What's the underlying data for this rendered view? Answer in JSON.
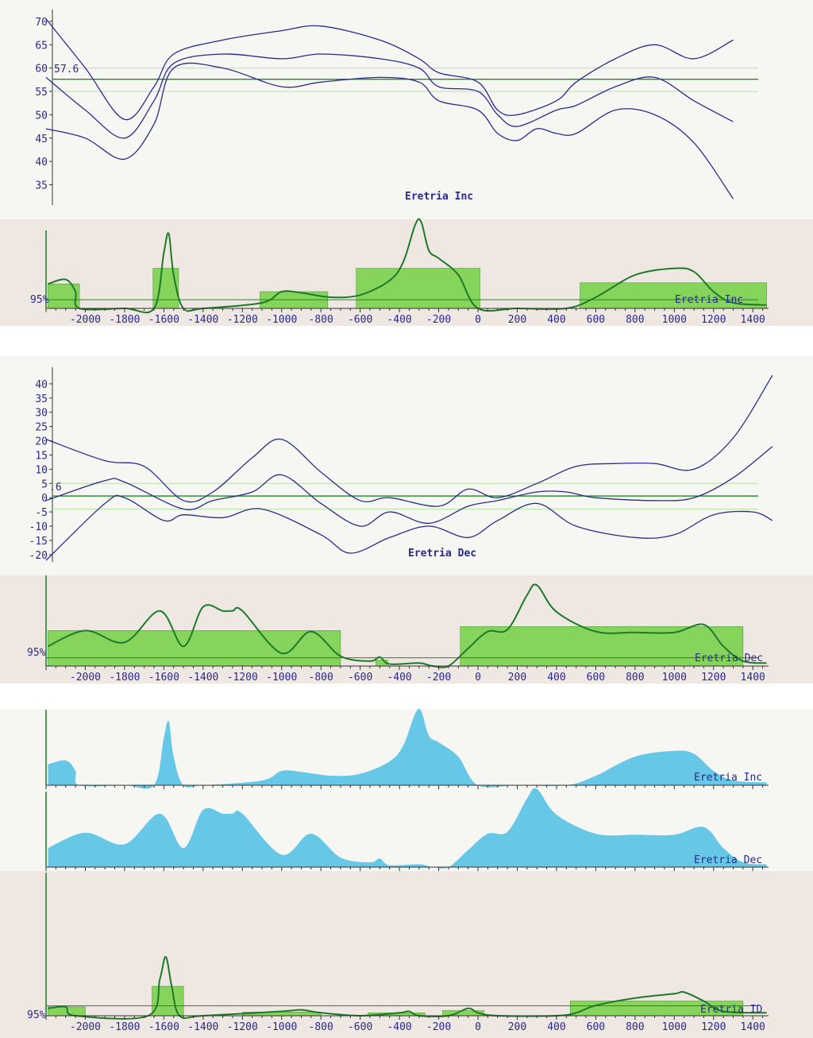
{
  "colors": {
    "panel_light": "#f6f6f3",
    "panel_pink": "#efe7e2",
    "curve_blue": "#2b2b8c",
    "ref_green": "#1f8a1f",
    "band_green": "#b8e0a8",
    "bar_fill": "#86d45c",
    "density_line": "#1c7a28",
    "density_fill": "#66c8e6",
    "text": "#2a2a8a"
  },
  "chart_data": [
    {
      "id": "inc-curves",
      "type": "line",
      "label": "Eretria Inc",
      "ylim": [
        31,
        71
      ],
      "yticks": [
        35,
        40,
        45,
        50,
        55,
        60,
        65,
        70
      ],
      "reference": {
        "value": 57.6,
        "label": "57.6",
        "band": [
          55,
          60
        ]
      },
      "series": [
        {
          "x": [
            -2200,
            -2000,
            -1800,
            -1650,
            -1550,
            -1300,
            -1000,
            -800,
            -500,
            -300,
            -200,
            0,
            100,
            200,
            400,
            500,
            700,
            900,
            1100,
            1300
          ],
          "y": [
            70.5,
            60,
            49,
            56,
            63,
            66,
            68,
            69,
            66,
            62,
            59,
            57,
            51,
            50,
            53,
            57,
            62,
            65,
            62,
            66
          ]
        },
        {
          "x": [
            -2200,
            -2000,
            -1800,
            -1650,
            -1550,
            -1300,
            -1000,
            -800,
            -500,
            -300,
            -200,
            0,
            100,
            200,
            400,
            500,
            700,
            900,
            1100,
            1300
          ],
          "y": [
            58,
            51,
            45,
            53,
            61,
            63,
            62,
            63,
            62,
            60,
            56,
            55,
            50,
            47.5,
            51,
            52,
            56,
            58,
            53,
            48.5
          ]
        },
        {
          "x": [
            -2200,
            -2000,
            -1800,
            -1650,
            -1550,
            -1300,
            -1000,
            -800,
            -500,
            -300,
            -200,
            0,
            100,
            200,
            300,
            400,
            500,
            700,
            900,
            1100,
            1300
          ],
          "y": [
            47,
            45,
            40.5,
            48,
            60,
            60,
            56,
            57,
            58,
            57,
            53,
            51,
            46,
            44.5,
            47,
            46,
            46,
            51,
            50,
            44,
            32
          ]
        }
      ]
    },
    {
      "id": "inc-density",
      "type": "area",
      "label": "Eretria Inc",
      "reference_label": "95%",
      "xticks": [
        -2000,
        -1800,
        -1600,
        -1400,
        -1200,
        -1000,
        -800,
        -600,
        -400,
        -200,
        0,
        200,
        400,
        600,
        800,
        1000,
        1200,
        1400
      ],
      "intervals": [
        {
          "from": -2190,
          "to": -2030,
          "height": 0.22
        },
        {
          "from": -1655,
          "to": -1525,
          "height": 0.36
        },
        {
          "from": -1110,
          "to": -765,
          "height": 0.15
        },
        {
          "from": -620,
          "to": 10,
          "height": 0.36
        },
        {
          "from": 520,
          "to": 1470,
          "height": 0.23
        }
      ],
      "density": {
        "x": [
          -2190,
          -2100,
          -2050,
          -2030,
          -1800,
          -1650,
          -1600,
          -1575,
          -1550,
          -1500,
          -1400,
          -1100,
          -1000,
          -900,
          -750,
          -600,
          -450,
          -380,
          -320,
          -290,
          -250,
          -200,
          -100,
          0,
          200,
          450,
          600,
          800,
          1000,
          1100,
          1200,
          1300,
          1470
        ],
        "y": [
          0.22,
          0.26,
          0.15,
          0.0,
          0.0,
          0.0,
          0.5,
          0.67,
          0.3,
          0.0,
          0.0,
          0.05,
          0.15,
          0.14,
          0.1,
          0.12,
          0.25,
          0.42,
          0.75,
          0.78,
          0.52,
          0.45,
          0.3,
          0.0,
          0.0,
          0.0,
          0.1,
          0.3,
          0.36,
          0.33,
          0.15,
          0.05,
          0.03
        ]
      }
    },
    {
      "id": "dec-curves",
      "type": "line",
      "label": "Eretria Dec",
      "ylim": [
        -22,
        45
      ],
      "yticks": [
        -20,
        -15,
        -10,
        -5,
        0,
        5,
        10,
        15,
        20,
        25,
        30,
        35,
        40
      ],
      "reference": {
        "value": 0.6,
        "label": ".6",
        "band": [
          -4,
          5
        ]
      },
      "series": [
        {
          "x": [
            -2200,
            -1900,
            -1700,
            -1500,
            -1350,
            -1150,
            -1000,
            -800,
            -600,
            -450,
            -200,
            -50,
            100,
            300,
            500,
            700,
            900,
            1100,
            1300,
            1500
          ],
          "y": [
            20.5,
            13,
            11,
            -1,
            2,
            14,
            20.5,
            9,
            -1,
            0,
            -3,
            3,
            0,
            5,
            11,
            12,
            12,
            10,
            21,
            43
          ]
        },
        {
          "x": [
            -2200,
            -1900,
            -1800,
            -1500,
            -1350,
            -1150,
            -1000,
            -800,
            -600,
            -450,
            -250,
            -50,
            100,
            300,
            450,
            600,
            900,
            1100,
            1300,
            1500
          ],
          "y": [
            -1,
            6,
            5.5,
            -4,
            -1,
            2,
            8,
            -2,
            -10,
            -5,
            -9,
            -3,
            -1,
            2,
            2,
            0,
            -1,
            0,
            7,
            18
          ]
        },
        {
          "x": [
            -2200,
            -1900,
            -1800,
            -1600,
            -1500,
            -1300,
            -1100,
            -800,
            -650,
            -450,
            -250,
            -50,
            100,
            300,
            500,
            800,
            1000,
            1200,
            1400,
            1500
          ],
          "y": [
            -22,
            -2,
            0,
            -8,
            -6,
            -7,
            -4,
            -13,
            -19.5,
            -14,
            -10,
            -14,
            -8,
            -2,
            -10,
            -14,
            -13,
            -6,
            -5,
            -8
          ]
        }
      ]
    },
    {
      "id": "dec-density",
      "type": "area",
      "label": "Eretria Dec",
      "reference_label": "95%",
      "xticks": [
        -2000,
        -1800,
        -1600,
        -1400,
        -1200,
        -1000,
        -800,
        -600,
        -400,
        -200,
        0,
        200,
        400,
        600,
        800,
        1000,
        1200,
        1400
      ],
      "intervals": [
        {
          "from": -2190,
          "to": -700,
          "height": 0.36
        },
        {
          "from": -520,
          "to": -460,
          "height": 0.06
        },
        {
          "from": -90,
          "to": 1350,
          "height": 0.4
        }
      ],
      "density": {
        "x": [
          -2190,
          -2000,
          -1800,
          -1620,
          -1500,
          -1400,
          -1300,
          -1250,
          -1200,
          -1000,
          -850,
          -700,
          -550,
          -500,
          -450,
          -300,
          -230,
          -150,
          -50,
          50,
          150,
          250,
          300,
          400,
          600,
          800,
          1000,
          1150,
          1250,
          1350,
          1470
        ],
        "y": [
          0.2,
          0.36,
          0.24,
          0.56,
          0.2,
          0.6,
          0.56,
          0.56,
          0.56,
          0.13,
          0.35,
          0.1,
          0.05,
          0.09,
          0.02,
          0.03,
          0.0,
          0.0,
          0.18,
          0.35,
          0.37,
          0.72,
          0.82,
          0.55,
          0.35,
          0.34,
          0.34,
          0.42,
          0.2,
          0.05,
          0.03
        ]
      }
    },
    {
      "id": "inc-filled",
      "type": "area",
      "label": "Eretria Inc",
      "density": {
        "x": [
          -2190,
          -2100,
          -2050,
          -2030,
          -1800,
          -1650,
          -1600,
          -1575,
          -1550,
          -1500,
          -1400,
          -1100,
          -1000,
          -900,
          -750,
          -600,
          -450,
          -380,
          -320,
          -290,
          -250,
          -200,
          -100,
          0,
          200,
          450,
          600,
          800,
          1000,
          1100,
          1200,
          1300,
          1470
        ],
        "y": [
          0.22,
          0.26,
          0.15,
          0.0,
          0.0,
          0.0,
          0.5,
          0.67,
          0.3,
          0.0,
          0.0,
          0.05,
          0.15,
          0.14,
          0.1,
          0.12,
          0.25,
          0.42,
          0.75,
          0.78,
          0.52,
          0.45,
          0.3,
          0.0,
          0.0,
          0.0,
          0.1,
          0.3,
          0.36,
          0.33,
          0.15,
          0.05,
          0.03
        ]
      }
    },
    {
      "id": "dec-filled",
      "type": "area",
      "label": "Eretria Dec",
      "density": {
        "x": [
          -2190,
          -2000,
          -1800,
          -1620,
          -1500,
          -1400,
          -1300,
          -1250,
          -1200,
          -1000,
          -850,
          -700,
          -550,
          -500,
          -450,
          -300,
          -230,
          -150,
          -50,
          50,
          150,
          250,
          300,
          400,
          600,
          800,
          1000,
          1150,
          1250,
          1350,
          1470
        ],
        "y": [
          0.2,
          0.36,
          0.24,
          0.56,
          0.2,
          0.6,
          0.56,
          0.56,
          0.56,
          0.13,
          0.35,
          0.1,
          0.05,
          0.09,
          0.02,
          0.03,
          0.0,
          0.0,
          0.18,
          0.35,
          0.37,
          0.72,
          0.82,
          0.55,
          0.35,
          0.34,
          0.34,
          0.42,
          0.2,
          0.05,
          0.03
        ]
      }
    },
    {
      "id": "id-density",
      "type": "area",
      "label": "Eretria ID",
      "reference_label": "95%",
      "xticks": [
        -2000,
        -1800,
        -1600,
        -1400,
        -1200,
        -1000,
        -800,
        -600,
        -400,
        -200,
        0,
        200,
        400,
        600,
        800,
        1000,
        1200,
        1400
      ],
      "intervals": [
        {
          "from": -2190,
          "to": -2000,
          "height": 0.06
        },
        {
          "from": -1660,
          "to": -1500,
          "height": 0.2
        },
        {
          "from": -1200,
          "to": -800,
          "height": 0.025
        },
        {
          "from": -560,
          "to": -270,
          "height": 0.02
        },
        {
          "from": -180,
          "to": 30,
          "height": 0.035
        },
        {
          "from": 470,
          "to": 1350,
          "height": 0.1
        }
      ],
      "density": {
        "x": [
          -2190,
          -2100,
          -2050,
          -1680,
          -1620,
          -1590,
          -1560,
          -1520,
          -1400,
          -1000,
          -900,
          -800,
          -600,
          -400,
          -350,
          -300,
          -150,
          -50,
          0,
          100,
          400,
          500,
          600,
          800,
          1000,
          1050,
          1150,
          1250,
          1470
        ],
        "y": [
          0.05,
          0.06,
          0.0,
          0.0,
          0.25,
          0.4,
          0.2,
          0.0,
          0.0,
          0.03,
          0.04,
          0.02,
          0.0,
          0.02,
          0.03,
          0.0,
          0.0,
          0.05,
          0.02,
          0.0,
          0.0,
          0.02,
          0.07,
          0.12,
          0.15,
          0.16,
          0.1,
          0.03,
          0.02
        ]
      }
    }
  ]
}
